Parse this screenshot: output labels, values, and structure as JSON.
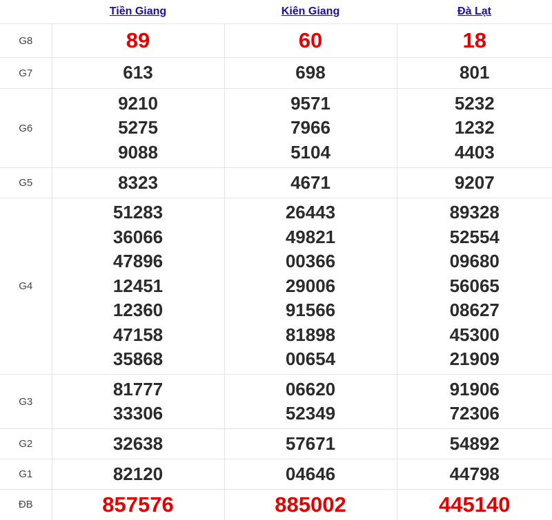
{
  "provinces": [
    "Tiền Giang",
    "Kiên Giang",
    "Đà Lạt"
  ],
  "colors": {
    "highlight": "#e00000",
    "link": "#1a0dab",
    "text": "#2b2b2b"
  },
  "prizes": [
    {
      "label": "G8",
      "highlight": true,
      "results": [
        [
          "89"
        ],
        [
          "60"
        ],
        [
          "18"
        ]
      ]
    },
    {
      "label": "G7",
      "highlight": false,
      "results": [
        [
          "613"
        ],
        [
          "698"
        ],
        [
          "801"
        ]
      ]
    },
    {
      "label": "G6",
      "highlight": false,
      "results": [
        [
          "9210",
          "5275",
          "9088"
        ],
        [
          "9571",
          "7966",
          "5104"
        ],
        [
          "5232",
          "1232",
          "4403"
        ]
      ]
    },
    {
      "label": "G5",
      "highlight": false,
      "results": [
        [
          "8323"
        ],
        [
          "4671"
        ],
        [
          "9207"
        ]
      ]
    },
    {
      "label": "G4",
      "highlight": false,
      "results": [
        [
          "51283",
          "36066",
          "47896",
          "12451",
          "12360",
          "47158",
          "35868"
        ],
        [
          "26443",
          "49821",
          "00366",
          "29006",
          "91566",
          "81898",
          "00654"
        ],
        [
          "89328",
          "52554",
          "09680",
          "56065",
          "08627",
          "45300",
          "21909"
        ]
      ]
    },
    {
      "label": "G3",
      "highlight": false,
      "results": [
        [
          "81777",
          "33306"
        ],
        [
          "06620",
          "52349"
        ],
        [
          "91906",
          "72306"
        ]
      ]
    },
    {
      "label": "G2",
      "highlight": false,
      "results": [
        [
          "32638"
        ],
        [
          "57671"
        ],
        [
          "54892"
        ]
      ]
    },
    {
      "label": "G1",
      "highlight": false,
      "results": [
        [
          "82120"
        ],
        [
          "04646"
        ],
        [
          "44798"
        ]
      ]
    },
    {
      "label": "ĐB",
      "highlight": true,
      "results": [
        [
          "857576"
        ],
        [
          "885002"
        ],
        [
          "445140"
        ]
      ]
    }
  ]
}
